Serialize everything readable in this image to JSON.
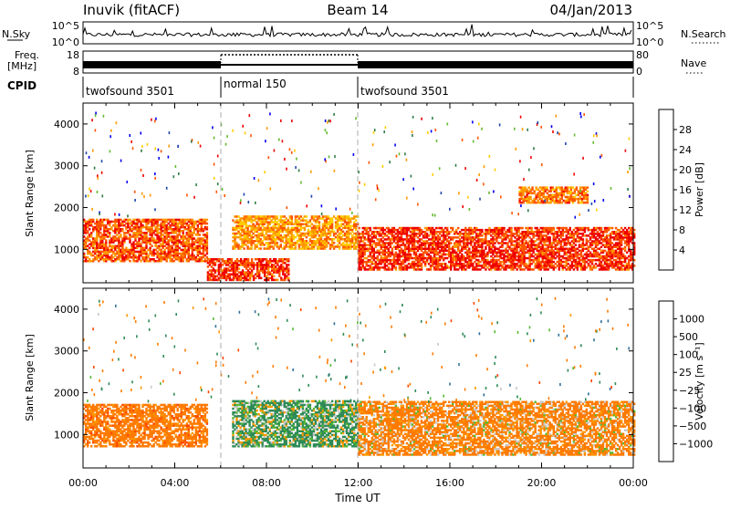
{
  "header": {
    "station": "Inuvik (fitACF)",
    "beam": "Beam 14",
    "date": "04/Jan/2013"
  },
  "aux_panels": {
    "nsky": {
      "label": "N.Sky",
      "ticks": [
        "10^5",
        "10^0"
      ]
    },
    "nsearch": {
      "label": "N.Search",
      "ticks": [
        "10^5",
        "10^0"
      ]
    },
    "freq": {
      "label_line1": "Freq.",
      "label_line2": "[MHz]",
      "ticks": [
        "18",
        "8"
      ]
    },
    "nave": {
      "label": "Nave",
      "ticks": [
        "80",
        "0"
      ]
    },
    "cpid": {
      "label": "CPID",
      "segments": [
        "twofsound 3501",
        "normal 150",
        "twofsound 3501"
      ]
    }
  },
  "power_panel": {
    "ylabel": "Slant Range [km]",
    "colorbar_label": "Power [dB]",
    "colorbar_ticks": [
      "28",
      "24",
      "20",
      "16",
      "12",
      "8",
      "4"
    ],
    "colors": [
      "#0000ee",
      "#1e46a8",
      "#2e7d45",
      "#66bb33",
      "#ffcc00",
      "#ff9900",
      "#ff5500",
      "#ee0000"
    ]
  },
  "velocity_panel": {
    "ylabel": "Slant Range [km]",
    "colorbar_label": "Velocity [m s⁻¹]",
    "colorbar_ticks": [
      "1000",
      "500",
      "100",
      "25",
      "−25",
      "−100",
      "−500",
      "−1000"
    ],
    "colors": [
      "#2a3ca8",
      "#2f6f9a",
      "#2e8b57",
      "#55bb33",
      "#c8c8c8",
      "#ff9900",
      "#ff7a00",
      "#ff4400",
      "#ee0000"
    ]
  },
  "x_axis": {
    "label": "Time UT",
    "ticks": [
      "00:00",
      "04:00",
      "08:00",
      "12:00",
      "16:00",
      "20:00",
      "00:00"
    ]
  },
  "chart_data": [
    {
      "type": "heatmap",
      "title": "Power",
      "xlabel": "",
      "ylabel": "Slant Range [km]",
      "x_range_hours": [
        0,
        24
      ],
      "ylim": [
        200,
        4500
      ],
      "y_ticks": [
        1000,
        2000,
        3000,
        4000
      ],
      "colorbar": {
        "label": "Power [dB]",
        "range": [
          0,
          32
        ],
        "ticks": [
          4,
          8,
          12,
          16,
          20,
          24,
          28
        ]
      },
      "echo_regions": [
        {
          "t_start": 0.0,
          "t_end": 5.4,
          "range_low": 700,
          "range_high": 1700,
          "dominant_power_db": 26
        },
        {
          "t_start": 5.4,
          "t_end": 9.0,
          "range_low": 250,
          "range_high": 750,
          "dominant_power_db": 28
        },
        {
          "t_start": 6.5,
          "t_end": 12.0,
          "range_low": 1000,
          "range_high": 1800,
          "dominant_power_db": 22
        },
        {
          "t_start": 12.0,
          "t_end": 24.0,
          "range_low": 500,
          "range_high": 1500,
          "dominant_power_db": 28
        },
        {
          "t_start": 19.0,
          "t_end": 22.0,
          "range_low": 2100,
          "range_high": 2500,
          "dominant_power_db": 24
        }
      ]
    },
    {
      "type": "heatmap",
      "title": "Velocity",
      "xlabel": "Time UT",
      "ylabel": "Slant Range [km]",
      "x_range_hours": [
        0,
        24
      ],
      "ylim": [
        200,
        4500
      ],
      "y_ticks": [
        1000,
        2000,
        3000,
        4000
      ],
      "colorbar": {
        "label": "Velocity [m s⁻¹]",
        "ticks": [
          1000,
          500,
          100,
          25,
          -25,
          -100,
          -500,
          -1000
        ]
      },
      "echo_regions": [
        {
          "t_start": 0.0,
          "t_end": 5.4,
          "range_low": 700,
          "range_high": 1700,
          "dominant_velocity": -300
        },
        {
          "t_start": 6.5,
          "t_end": 12.0,
          "range_low": 700,
          "range_high": 1800,
          "dominant_velocity": 150
        },
        {
          "t_start": 12.0,
          "t_end": 24.0,
          "range_low": 500,
          "range_high": 1800,
          "dominant_velocity": -200
        }
      ]
    }
  ]
}
